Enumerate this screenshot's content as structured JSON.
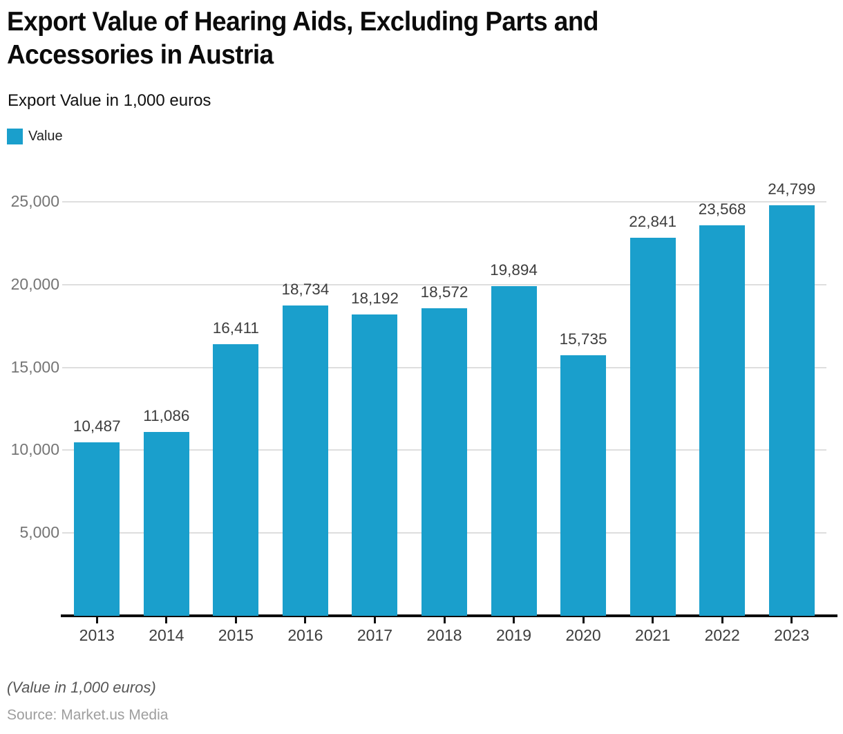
{
  "header": {
    "title_line1": "Export Value of Hearing Aids, Excluding Parts and",
    "title_line2": "Accessories in Austria",
    "subtitle": "Export Value in 1,000 euros"
  },
  "legend": {
    "label": "Value",
    "swatch_color": "#1A9FCC"
  },
  "chart_data": {
    "type": "bar",
    "title": "Export Value of Hearing Aids, Excluding Parts and Accessories in Austria",
    "subtitle": "Export Value in 1,000 euros",
    "series_name": "Value",
    "categories": [
      "2013",
      "2014",
      "2015",
      "2016",
      "2017",
      "2018",
      "2019",
      "2020",
      "2021",
      "2022",
      "2023"
    ],
    "values": [
      10487,
      11086,
      16411,
      18734,
      18192,
      18572,
      19894,
      15735,
      22841,
      23568,
      24799
    ],
    "value_labels": [
      "10,487",
      "11,086",
      "16,411",
      "18,734",
      "18,192",
      "18,572",
      "19,894",
      "15,735",
      "22,841",
      "23,568",
      "24,799"
    ],
    "xlabel": "",
    "ylabel": "",
    "ylim": [
      0,
      25000
    ],
    "yticks": [
      5000,
      10000,
      15000,
      20000,
      25000
    ],
    "ytick_labels": [
      "5,000",
      "10,000",
      "15,000",
      "20,000",
      "25,000"
    ],
    "grid": "horizontal",
    "legend_position": "top-left",
    "bar_color": "#1A9FCC",
    "gridline_color": "#dedede",
    "axis_color": "#0d0d0d"
  },
  "footer": {
    "note": "(Value in 1,000 euros)",
    "source": "Source: Market.us Media"
  }
}
